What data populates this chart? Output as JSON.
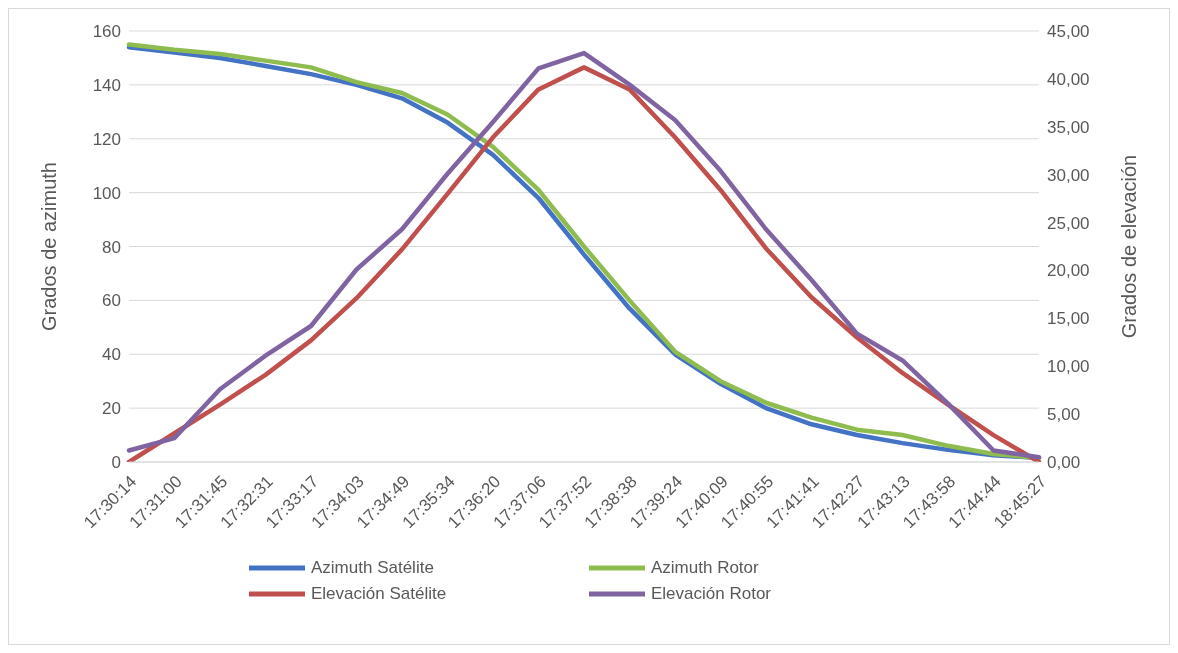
{
  "chart_data": {
    "type": "line",
    "ylabel": "Grados de azimuth",
    "y2label": "Grados de elevación",
    "categories": [
      "17:30:14",
      "17:31:00",
      "17:31:45",
      "17:32:31",
      "17:33:17",
      "17:34:03",
      "17:34:49",
      "17:35:34",
      "17:36:20",
      "17:37:06",
      "17:37:52",
      "17:38:38",
      "17:39:24",
      "17:40:09",
      "17:40:55",
      "17:41:41",
      "17:42:27",
      "17:43:13",
      "17:43:58",
      "17:44:44",
      "18:45:27"
    ],
    "series": [
      {
        "name": "Azimuth Satélite",
        "color": "#4472c4",
        "values": [
          154,
          152,
          150,
          147,
          144,
          140,
          135,
          126,
          114,
          98,
          77,
          57,
          40,
          29,
          20,
          14,
          10,
          7,
          4.5,
          2.5,
          1.5
        ]
      },
      {
        "name": "Azimuth Rotor",
        "color": "#8fbc4f",
        "values": [
          155,
          153,
          151.5,
          149,
          146.5,
          141,
          137,
          129,
          117,
          101,
          80,
          60,
          41,
          30,
          22,
          16.5,
          12,
          10,
          6,
          3,
          1.5
        ]
      },
      {
        "name": "Elevación Satélite",
        "color": "#c0504d",
        "axis": "y2",
        "values": [
          0,
          3,
          6,
          9.1,
          12.7,
          17.1,
          22.2,
          28,
          33.9,
          38.9,
          41.2,
          38.9,
          33.9,
          28.4,
          22.3,
          17.2,
          13,
          9.3,
          6,
          2.8,
          0
        ]
      },
      {
        "name": "Elevación Rotor",
        "color": "#8064a2",
        "axis": "y2",
        "values": [
          1.2,
          2.5,
          7.6,
          11.1,
          14.2,
          20.1,
          24.3,
          30.1,
          35.5,
          41.1,
          42.7,
          39.4,
          35.7,
          30.4,
          24.3,
          19,
          13.4,
          10.6,
          6.1,
          1.2,
          0.5
        ]
      }
    ],
    "ylim": [
      0,
      160
    ],
    "yticks": [
      0,
      20,
      40,
      60,
      80,
      100,
      120,
      140,
      160
    ],
    "y2lim": [
      0,
      45
    ],
    "y2ticks": [
      {
        "value": 0,
        "label": "0,00"
      },
      {
        "value": 5,
        "label": "5,00"
      },
      {
        "value": 10,
        "label": "10,00"
      },
      {
        "value": 15,
        "label": "15,00"
      },
      {
        "value": 20,
        "label": "20,00"
      },
      {
        "value": 25,
        "label": "25,00"
      },
      {
        "value": 30,
        "label": "30,00"
      },
      {
        "value": 35,
        "label": "35,00"
      },
      {
        "value": 40,
        "label": "40,00"
      },
      {
        "value": 45,
        "label": "45,00"
      }
    ],
    "grid": "y",
    "legend": "bottom",
    "marker": "none",
    "line_style": "solid"
  }
}
